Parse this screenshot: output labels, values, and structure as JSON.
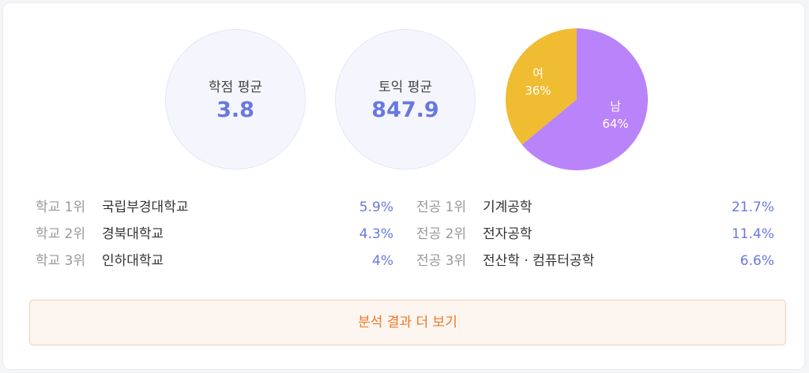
{
  "stats": [
    {
      "label": "학점 평균",
      "value": "3.8"
    },
    {
      "label": "토익 평균",
      "value": "847.9"
    }
  ],
  "gender": {
    "female": {
      "label": "여",
      "pct_text": "36%",
      "value": 36,
      "color": "#f0bc32"
    },
    "male": {
      "label": "남",
      "pct_text": "64%",
      "value": 64,
      "color": "#b983f9"
    }
  },
  "school_ranks": [
    {
      "label": "학교 1위",
      "name": "국립부경대학교",
      "pct": "5.9%"
    },
    {
      "label": "학교 2위",
      "name": "경북대학교",
      "pct": "4.3%"
    },
    {
      "label": "학교 3위",
      "name": "인하대학교",
      "pct": "4%"
    }
  ],
  "major_ranks": [
    {
      "label": "전공 1위",
      "name": "기계공학",
      "pct": "21.7%"
    },
    {
      "label": "전공 2위",
      "name": "전자공학",
      "pct": "11.4%"
    },
    {
      "label": "전공 3위",
      "name": "전산학 · 컴퓨터공학",
      "pct": "6.6%"
    }
  ],
  "more_button": {
    "label": "분석 결과 더 보기"
  },
  "colors": {
    "accent": "#6878e0",
    "button_text": "#ea7a2c"
  }
}
